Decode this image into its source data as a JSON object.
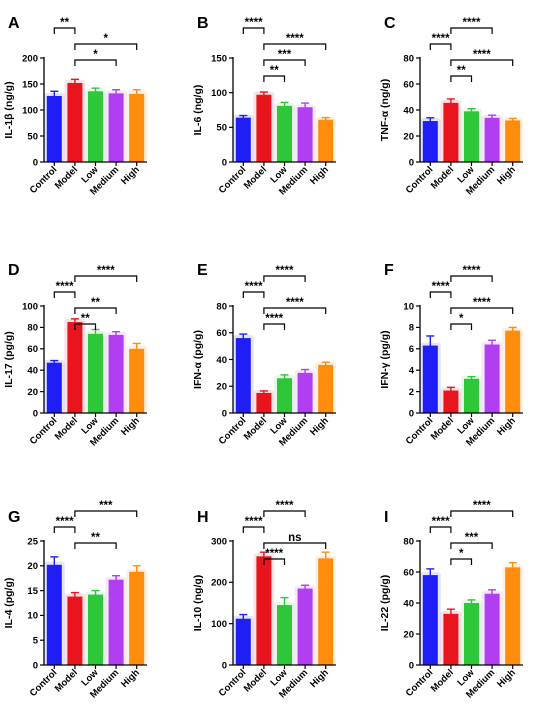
{
  "colors": {
    "Control": "#1f1ff5",
    "Model": "#e8141e",
    "Low": "#2fc73a",
    "Medium": "#b13ef0",
    "High": "#ff8c0a"
  },
  "chart_data": [
    {
      "panel": "A",
      "type": "bar",
      "ylabel": "IL-1β (ng/g)",
      "categories": [
        "Control",
        "Model",
        "Low",
        "Medium",
        "High"
      ],
      "values": [
        127,
        152,
        136,
        132,
        131
      ],
      "errors": [
        9,
        7,
        6,
        7,
        8
      ],
      "ylim": [
        0,
        200
      ],
      "yticks": [
        0,
        50,
        100,
        150,
        200
      ],
      "brackets": [
        {
          "from": 0,
          "to": 1,
          "label": "**"
        },
        {
          "from": 1,
          "to": 4,
          "label": "*"
        },
        {
          "from": 1,
          "to": 3,
          "label": "*"
        }
      ]
    },
    {
      "panel": "B",
      "type": "bar",
      "ylabel": "IL-6 (ng/g)",
      "categories": [
        "Control",
        "Model",
        "Low",
        "Medium",
        "High"
      ],
      "values": [
        64,
        97,
        81,
        79,
        61
      ],
      "errors": [
        3,
        4,
        5,
        6,
        3
      ],
      "ylim": [
        0,
        150
      ],
      "yticks": [
        0,
        50,
        100,
        150
      ],
      "brackets": [
        {
          "from": 0,
          "to": 1,
          "label": "****"
        },
        {
          "from": 1,
          "to": 4,
          "label": "****"
        },
        {
          "from": 1,
          "to": 3,
          "label": "***"
        },
        {
          "from": 1,
          "to": 2,
          "label": "**"
        }
      ]
    },
    {
      "panel": "C",
      "type": "bar",
      "ylabel": "TNF-α (ng/g)",
      "categories": [
        "Control",
        "Model",
        "Low",
        "Medium",
        "High"
      ],
      "values": [
        31.5,
        45.5,
        39,
        34,
        32
      ],
      "errors": [
        2.5,
        3,
        2,
        2,
        1.5
      ],
      "ylim": [
        0,
        80
      ],
      "yticks": [
        0,
        20,
        40,
        60,
        80
      ],
      "brackets": [
        {
          "from": 1,
          "to": 3,
          "label": "****"
        },
        {
          "from": 0,
          "to": 1,
          "label": "****"
        },
        {
          "from": 1,
          "to": 4,
          "label": "****"
        },
        {
          "from": 1,
          "to": 2,
          "label": "**"
        }
      ]
    },
    {
      "panel": "D",
      "type": "bar",
      "ylabel": "IL-17 (pg/g)",
      "categories": [
        "Control",
        "Model",
        "Low",
        "Medium",
        "High"
      ],
      "values": [
        47,
        85,
        74,
        73,
        60
      ],
      "errors": [
        2,
        3,
        4,
        3,
        5
      ],
      "ylim": [
        0,
        100
      ],
      "yticks": [
        0,
        20,
        40,
        60,
        80,
        100
      ],
      "brackets": [
        {
          "from": 1,
          "to": 4,
          "label": "****"
        },
        {
          "from": 0,
          "to": 1,
          "label": "****"
        },
        {
          "from": 1,
          "to": 3,
          "label": "**"
        },
        {
          "from": 1,
          "to": 2,
          "label": "**"
        }
      ]
    },
    {
      "panel": "E",
      "type": "bar",
      "ylabel": "IFN-α (pg/g)",
      "categories": [
        "Control",
        "Model",
        "Low",
        "Medium",
        "High"
      ],
      "values": [
        56,
        15,
        26,
        30,
        36
      ],
      "errors": [
        3,
        1.5,
        2.5,
        2.5,
        2
      ],
      "ylim": [
        0,
        80
      ],
      "yticks": [
        0,
        20,
        40,
        60,
        80
      ],
      "brackets": [
        {
          "from": 1,
          "to": 3,
          "label": "****"
        },
        {
          "from": 0,
          "to": 1,
          "label": "****"
        },
        {
          "from": 1,
          "to": 4,
          "label": "****"
        },
        {
          "from": 1,
          "to": 2,
          "label": "****"
        }
      ]
    },
    {
      "panel": "F",
      "type": "bar",
      "ylabel": "IFN-γ (pg/g)",
      "categories": [
        "Control",
        "Model",
        "Low",
        "Medium",
        "High"
      ],
      "values": [
        6.3,
        2.1,
        3.2,
        6.4,
        7.7
      ],
      "errors": [
        0.9,
        0.3,
        0.2,
        0.4,
        0.3
      ],
      "ylim": [
        0,
        10
      ],
      "yticks": [
        0,
        2,
        4,
        6,
        8,
        10
      ],
      "brackets": [
        {
          "from": 1,
          "to": 3,
          "label": "****"
        },
        {
          "from": 0,
          "to": 1,
          "label": "****"
        },
        {
          "from": 1,
          "to": 4,
          "label": "****"
        },
        {
          "from": 1,
          "to": 2,
          "label": "*"
        }
      ]
    },
    {
      "panel": "G",
      "type": "bar",
      "ylabel": "IL-4 (pg/g)",
      "categories": [
        "Control",
        "Model",
        "Low",
        "Medium",
        "High"
      ],
      "values": [
        20.2,
        13.8,
        14.2,
        17.2,
        18.8
      ],
      "errors": [
        1.6,
        0.8,
        0.8,
        0.8,
        1.2
      ],
      "ylim": [
        0,
        25
      ],
      "yticks": [
        0,
        5,
        10,
        15,
        20,
        25
      ],
      "brackets": [
        {
          "from": 1,
          "to": 4,
          "label": "***"
        },
        {
          "from": 0,
          "to": 1,
          "label": "****"
        },
        {
          "from": 1,
          "to": 3,
          "label": "**"
        }
      ]
    },
    {
      "panel": "H",
      "type": "bar",
      "ylabel": "IL-10 (ng/g)",
      "categories": [
        "Control",
        "Model",
        "Low",
        "Medium",
        "High"
      ],
      "values": [
        112,
        263,
        145,
        185,
        258
      ],
      "errors": [
        10,
        10,
        18,
        8,
        15
      ],
      "ylim": [
        0,
        300
      ],
      "yticks": [
        0,
        100,
        200,
        300
      ],
      "brackets": [
        {
          "from": 1,
          "to": 3,
          "label": "****"
        },
        {
          "from": 0,
          "to": 1,
          "label": "****"
        },
        {
          "from": 1,
          "to": 4,
          "label": "ns"
        },
        {
          "from": 1,
          "to": 2,
          "label": "****"
        }
      ]
    },
    {
      "panel": "I",
      "type": "bar",
      "ylabel": "IL-22 (pg/g)",
      "categories": [
        "Control",
        "Model",
        "Low",
        "Medium",
        "High"
      ],
      "values": [
        58,
        33,
        40,
        46,
        63
      ],
      "errors": [
        4,
        3,
        2,
        2.5,
        3
      ],
      "ylim": [
        0,
        80
      ],
      "yticks": [
        0,
        20,
        40,
        60,
        80
      ],
      "brackets": [
        {
          "from": 1,
          "to": 4,
          "label": "****"
        },
        {
          "from": 0,
          "to": 1,
          "label": "****"
        },
        {
          "from": 1,
          "to": 3,
          "label": "***"
        },
        {
          "from": 1,
          "to": 2,
          "label": "*"
        }
      ]
    }
  ]
}
